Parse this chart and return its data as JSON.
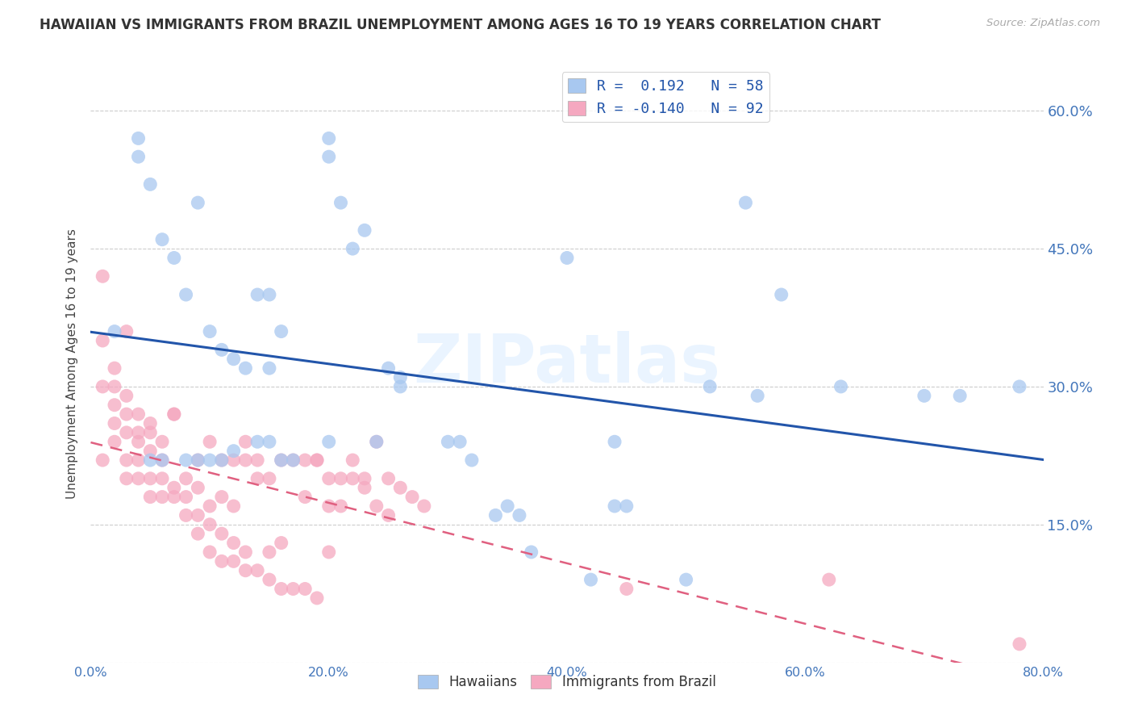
{
  "title": "HAWAIIAN VS IMMIGRANTS FROM BRAZIL UNEMPLOYMENT AMONG AGES 16 TO 19 YEARS CORRELATION CHART",
  "source": "Source: ZipAtlas.com",
  "ylabel": "Unemployment Among Ages 16 to 19 years",
  "xlim": [
    0.0,
    0.8
  ],
  "ylim": [
    0.0,
    0.65
  ],
  "x_ticks": [
    0.0,
    0.1,
    0.2,
    0.3,
    0.4,
    0.5,
    0.6,
    0.7,
    0.8
  ],
  "x_tick_labels": [
    "0.0%",
    "",
    "20.0%",
    "",
    "40.0%",
    "",
    "60.0%",
    "",
    "80.0%"
  ],
  "y_ticks": [
    0.0,
    0.15,
    0.3,
    0.45,
    0.6
  ],
  "y_tick_labels": [
    "",
    "15.0%",
    "30.0%",
    "45.0%",
    "60.0%"
  ],
  "hawaiians_R": "0.192",
  "hawaiians_N": "58",
  "brazil_R": "-0.140",
  "brazil_N": "92",
  "hawaiian_color": "#a8c8f0",
  "brazil_color": "#f5a8c0",
  "trend_hawaiian_color": "#2255aa",
  "trend_brazil_color": "#e06080",
  "watermark": "ZIPatlas",
  "legend_label1": "R =  0.192   N = 58",
  "legend_label2": "R = -0.140   N = 92",
  "bottom_legend_label1": "Hawaiians",
  "bottom_legend_label2": "Immigrants from Brazil",
  "hawaiians_x": [
    0.02,
    0.04,
    0.04,
    0.05,
    0.06,
    0.07,
    0.08,
    0.09,
    0.1,
    0.11,
    0.12,
    0.13,
    0.14,
    0.15,
    0.15,
    0.16,
    0.17,
    0.2,
    0.2,
    0.21,
    0.22,
    0.23,
    0.25,
    0.26,
    0.3,
    0.32,
    0.34,
    0.35,
    0.36,
    0.37,
    0.4,
    0.42,
    0.44,
    0.45,
    0.5,
    0.52,
    0.55,
    0.56,
    0.58,
    0.63,
    0.7,
    0.73,
    0.78,
    0.08,
    0.09,
    0.1,
    0.11,
    0.12,
    0.14,
    0.15,
    0.16,
    0.24,
    0.31,
    0.44,
    0.05,
    0.06,
    0.2,
    0.26
  ],
  "hawaiians_y": [
    0.36,
    0.55,
    0.57,
    0.52,
    0.46,
    0.44,
    0.4,
    0.5,
    0.36,
    0.34,
    0.33,
    0.32,
    0.4,
    0.4,
    0.32,
    0.36,
    0.22,
    0.55,
    0.57,
    0.5,
    0.45,
    0.47,
    0.32,
    0.3,
    0.24,
    0.22,
    0.16,
    0.17,
    0.16,
    0.12,
    0.44,
    0.09,
    0.17,
    0.17,
    0.09,
    0.3,
    0.5,
    0.29,
    0.4,
    0.3,
    0.29,
    0.29,
    0.3,
    0.22,
    0.22,
    0.22,
    0.22,
    0.23,
    0.24,
    0.24,
    0.22,
    0.24,
    0.24,
    0.24,
    0.22,
    0.22,
    0.24,
    0.31
  ],
  "brazil_x": [
    0.01,
    0.01,
    0.01,
    0.02,
    0.02,
    0.02,
    0.02,
    0.03,
    0.03,
    0.03,
    0.03,
    0.03,
    0.04,
    0.04,
    0.04,
    0.04,
    0.05,
    0.05,
    0.05,
    0.05,
    0.06,
    0.06,
    0.06,
    0.07,
    0.07,
    0.07,
    0.08,
    0.08,
    0.09,
    0.09,
    0.09,
    0.1,
    0.1,
    0.1,
    0.11,
    0.11,
    0.11,
    0.12,
    0.12,
    0.12,
    0.13,
    0.13,
    0.13,
    0.14,
    0.14,
    0.15,
    0.15,
    0.16,
    0.16,
    0.17,
    0.18,
    0.18,
    0.19,
    0.19,
    0.2,
    0.2,
    0.21,
    0.22,
    0.23,
    0.24,
    0.25,
    0.01,
    0.02,
    0.03,
    0.04,
    0.05,
    0.06,
    0.07,
    0.08,
    0.09,
    0.1,
    0.11,
    0.12,
    0.13,
    0.14,
    0.15,
    0.16,
    0.17,
    0.18,
    0.19,
    0.2,
    0.21,
    0.22,
    0.23,
    0.24,
    0.25,
    0.26,
    0.27,
    0.28,
    0.45,
    0.62,
    0.78
  ],
  "brazil_y": [
    0.42,
    0.35,
    0.3,
    0.3,
    0.28,
    0.26,
    0.24,
    0.36,
    0.29,
    0.27,
    0.25,
    0.22,
    0.27,
    0.24,
    0.22,
    0.2,
    0.25,
    0.23,
    0.2,
    0.18,
    0.22,
    0.2,
    0.18,
    0.19,
    0.18,
    0.27,
    0.18,
    0.16,
    0.19,
    0.16,
    0.14,
    0.24,
    0.17,
    0.15,
    0.18,
    0.14,
    0.11,
    0.17,
    0.13,
    0.11,
    0.22,
    0.12,
    0.1,
    0.2,
    0.1,
    0.12,
    0.09,
    0.13,
    0.08,
    0.08,
    0.18,
    0.08,
    0.22,
    0.07,
    0.17,
    0.12,
    0.17,
    0.2,
    0.19,
    0.17,
    0.16,
    0.22,
    0.32,
    0.2,
    0.25,
    0.26,
    0.24,
    0.27,
    0.2,
    0.22,
    0.12,
    0.22,
    0.22,
    0.24,
    0.22,
    0.2,
    0.22,
    0.22,
    0.22,
    0.22,
    0.2,
    0.2,
    0.22,
    0.2,
    0.24,
    0.2,
    0.19,
    0.18,
    0.17,
    0.08,
    0.09,
    0.02
  ]
}
